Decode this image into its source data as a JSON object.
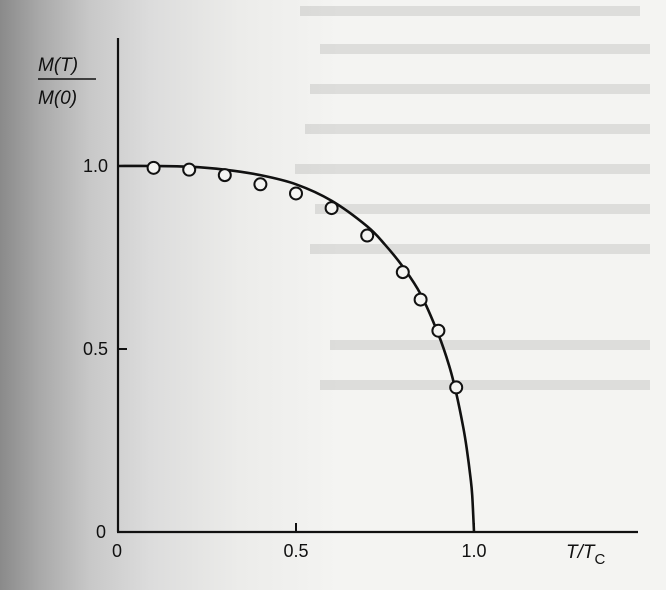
{
  "chart_data": {
    "type": "scatter",
    "ylabel_numerator": "M(T)",
    "ylabel_denominator": "M(0)",
    "xlabel": "T/T",
    "xlabel_sub": "C",
    "origin_x_label": "0",
    "origin_y_label": "0",
    "x_ticks": [
      {
        "value": 0.5,
        "label": "0.5"
      },
      {
        "value": 1.0,
        "label": "1.0"
      }
    ],
    "y_ticks": [
      {
        "value": 0.5,
        "label": "0.5"
      },
      {
        "value": 1.0,
        "label": "1.0"
      }
    ],
    "xlim": [
      0,
      1.15
    ],
    "ylim": [
      0,
      1.35
    ],
    "grid": false,
    "series": [
      {
        "kind": "points",
        "marker": "open-circle",
        "x": [
          0.1,
          0.2,
          0.3,
          0.4,
          0.5,
          0.6,
          0.7,
          0.8,
          0.85,
          0.9,
          0.95
        ],
        "y": [
          0.995,
          0.99,
          0.975,
          0.95,
          0.925,
          0.885,
          0.81,
          0.71,
          0.635,
          0.55,
          0.395
        ]
      },
      {
        "kind": "curve",
        "description_source": "theory",
        "x": [
          0.0,
          0.1,
          0.2,
          0.3,
          0.4,
          0.5,
          0.6,
          0.7,
          0.75,
          0.8,
          0.85,
          0.9,
          0.93,
          0.95,
          0.97,
          0.98,
          0.99,
          0.995,
          1.0
        ],
        "y": [
          1.0,
          1.0,
          0.998,
          0.99,
          0.975,
          0.95,
          0.905,
          0.835,
          0.785,
          0.725,
          0.65,
          0.54,
          0.455,
          0.38,
          0.285,
          0.225,
          0.15,
          0.1,
          0.0
        ]
      }
    ]
  }
}
